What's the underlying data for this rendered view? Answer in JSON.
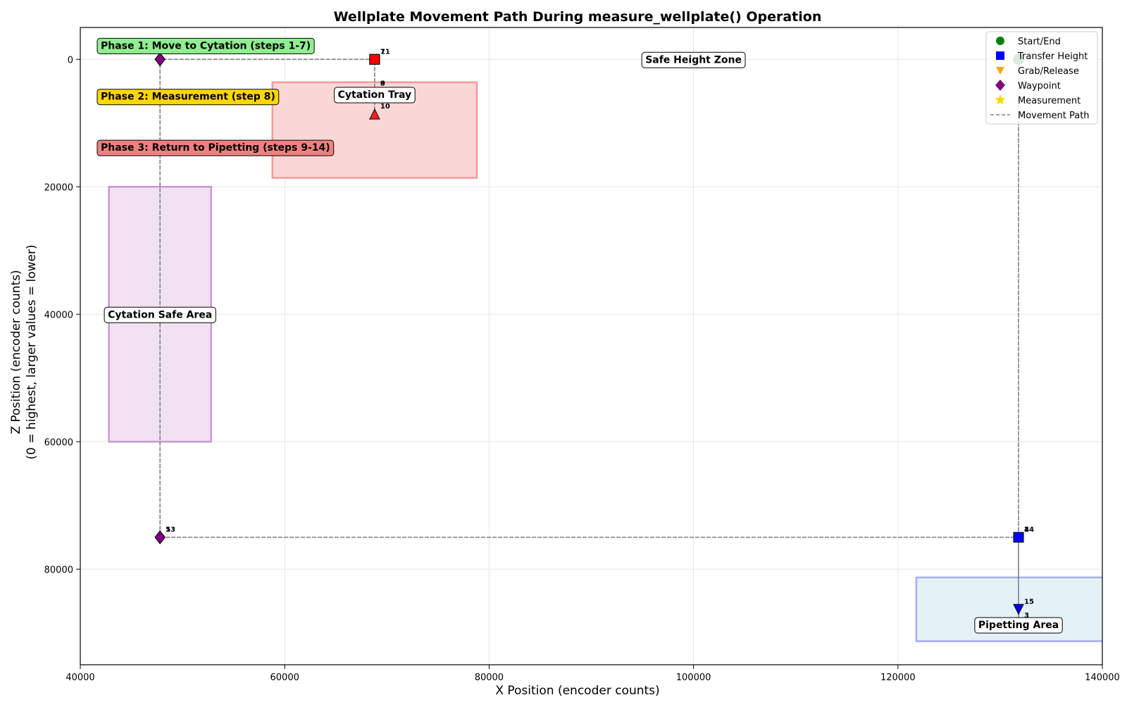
{
  "chart_data": {
    "type": "scatter",
    "title": "Wellplate Movement Path During measure_wellplate() Operation",
    "xlabel": "X Position (encoder counts)",
    "ylabel_lines": [
      "Z Position (encoder counts)",
      "(0 = highest, larger values = lower)"
    ],
    "xlim": [
      40000,
      140000
    ],
    "ylim": [
      95000,
      -5000
    ],
    "y_inverted": true,
    "grid": true,
    "x_ticks": [
      40000,
      60000,
      80000,
      100000,
      120000,
      140000
    ],
    "y_ticks": [
      0,
      20000,
      40000,
      60000,
      80000
    ],
    "regions": [
      {
        "label": "Cytation Safe Area",
        "x0": 42800,
        "x1": 52800,
        "z0": 20000,
        "z1": 60000,
        "fill": "#f1e1f3",
        "stroke": "#c79ad0",
        "label_x": 47800,
        "label_z": 40000
      },
      {
        "label": "Cytation Tray",
        "x0": 58800,
        "x1": 78800,
        "z0": 3600,
        "z1": 18600,
        "fill": "#fad6d6",
        "stroke": "#f09a9a",
        "label_x": 68800,
        "label_z": 5500
      },
      {
        "label": "Pipetting Area",
        "x0": 121800,
        "x1": 141800,
        "z0": 81300,
        "z1": 91300,
        "fill": "#e4f2f7",
        "stroke": "#a6aaf5",
        "label_x": 131800,
        "label_z": 88700
      }
    ],
    "annotations": [
      {
        "text": "Safe Height Zone",
        "x": 100000,
        "z": 0
      }
    ],
    "phase_labels": [
      {
        "text": "Phase 1: Move to Cytation (steps 1-7)",
        "z": -2200,
        "fill": "#90ee90"
      },
      {
        "text": "Phase 2: Measurement (step 8)",
        "z": 5800,
        "fill": "#ffd700"
      },
      {
        "text": "Phase 3: Return to Pipetting (steps 9-14)",
        "z": 13800,
        "fill": "#f08080"
      }
    ],
    "path": [
      {
        "step": 1,
        "x": 131800,
        "z": 0,
        "kind": "start"
      },
      {
        "step": 2,
        "x": 131800,
        "z": 75000,
        "kind": "transfer"
      },
      {
        "step": 3,
        "x": 131800,
        "z": 88500,
        "kind": "grab"
      },
      {
        "step": 4,
        "x": 131800,
        "z": 75000,
        "kind": "transfer"
      },
      {
        "step": 5,
        "x": 47800,
        "z": 75000,
        "kind": "waypoint"
      },
      {
        "step": 6,
        "x": 47800,
        "z": 0,
        "kind": "waypoint"
      },
      {
        "step": 7,
        "x": 68800,
        "z": 0,
        "kind": "transfer-red"
      },
      {
        "step": 8,
        "x": 68800,
        "z": 5000,
        "kind": "measure"
      },
      {
        "step": 9,
        "x": 68800,
        "z": 5000,
        "kind": "none"
      },
      {
        "step": 10,
        "x": 68800,
        "z": 8600,
        "kind": "release"
      },
      {
        "step": 11,
        "x": 68800,
        "z": 0,
        "kind": "transfer-red"
      },
      {
        "step": 12,
        "x": 47800,
        "z": 0,
        "kind": "waypoint"
      },
      {
        "step": 13,
        "x": 47800,
        "z": 75000,
        "kind": "waypoint"
      },
      {
        "step": 14,
        "x": 131800,
        "z": 75000,
        "kind": "transfer"
      },
      {
        "step": 15,
        "x": 131800,
        "z": 86300,
        "kind": "grab"
      },
      {
        "step": 16,
        "x": 131800,
        "z": 0,
        "kind": "end"
      }
    ],
    "legend": {
      "placement": "top-right",
      "entries": [
        {
          "label": "Start/End",
          "marker": "circle",
          "color": "#008000"
        },
        {
          "label": "Transfer Height",
          "marker": "square",
          "color": "#0000ff"
        },
        {
          "label": "Grab/Release",
          "marker": "triangle-down",
          "color": "#ffa500"
        },
        {
          "label": "Waypoint",
          "marker": "diamond",
          "color": "#800080"
        },
        {
          "label": "Measurement",
          "marker": "star",
          "color": "#ffd700"
        },
        {
          "label": "Movement Path",
          "marker": "dashed-line",
          "color": "#808080"
        }
      ]
    }
  }
}
